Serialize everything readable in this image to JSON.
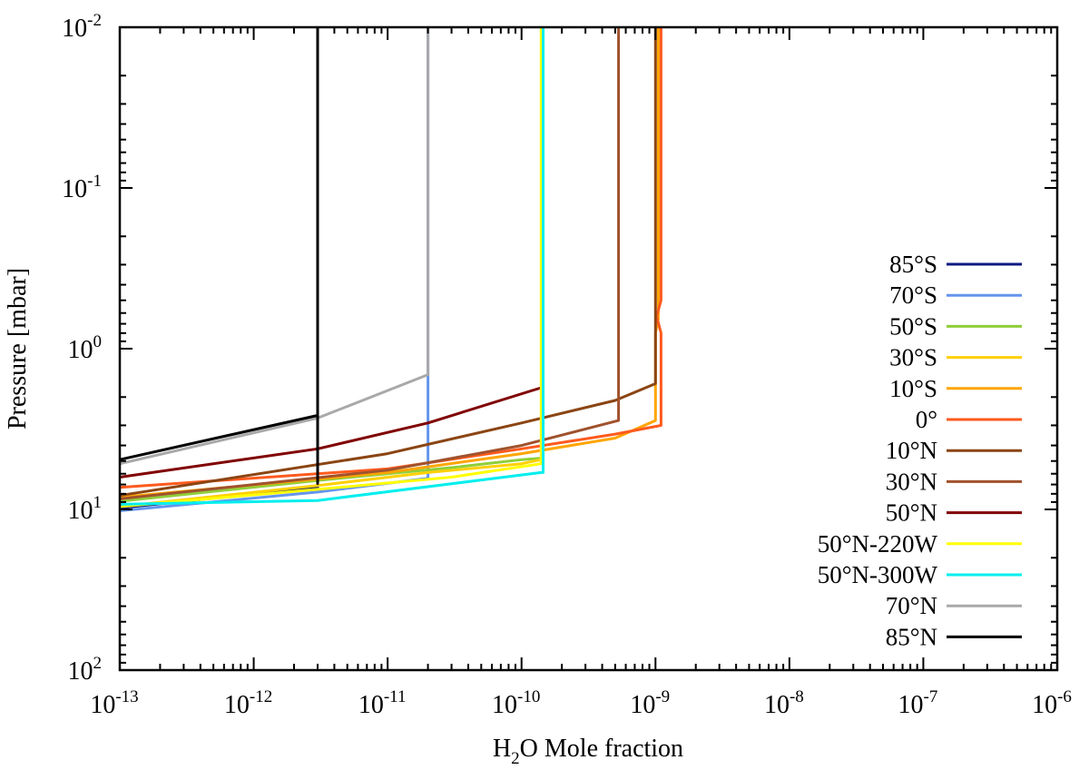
{
  "chart_data": {
    "type": "line",
    "title": "",
    "xlabel": {
      "prefix": "H",
      "subscript": "2",
      "suffix": "O Mole fraction"
    },
    "ylabel": "Pressure [mbar]",
    "xscale": "log",
    "yscale": "log",
    "xlim": [
      1e-13,
      1e-06
    ],
    "ylim": [
      100,
      0.01
    ],
    "y_inverted": true,
    "grid": false,
    "legend_position": "right",
    "x_ticks": [
      {
        "value": 1e-13,
        "base": "10",
        "exp": "-13"
      },
      {
        "value": 1e-12,
        "base": "10",
        "exp": "-12"
      },
      {
        "value": 1e-11,
        "base": "10",
        "exp": "-11"
      },
      {
        "value": 1e-10,
        "base": "10",
        "exp": "-10"
      },
      {
        "value": 1e-09,
        "base": "10",
        "exp": "-9"
      },
      {
        "value": 1e-08,
        "base": "10",
        "exp": "-8"
      },
      {
        "value": 1e-07,
        "base": "10",
        "exp": "-7"
      },
      {
        "value": 1e-06,
        "base": "10",
        "exp": "-6"
      }
    ],
    "y_ticks": [
      {
        "value": 0.01,
        "base": "10",
        "exp": "-2"
      },
      {
        "value": 0.1,
        "base": "10",
        "exp": "-1"
      },
      {
        "value": 1,
        "base": "10",
        "exp": "0"
      },
      {
        "value": 10,
        "base": "10",
        "exp": "1"
      },
      {
        "value": 100,
        "base": "10",
        "exp": "2"
      }
    ],
    "series": [
      {
        "name": "85°S",
        "color": "#0d1a80",
        "x": [
          1e-13,
          3e-12,
          3e-12,
          3e-12
        ],
        "y": [
          9.8,
          7.3,
          3.0,
          0.01
        ]
      },
      {
        "name": "70°S",
        "color": "#6495ed",
        "x": [
          1e-13,
          3e-12,
          2e-11,
          2e-11
        ],
        "y": [
          10.2,
          7.8,
          6.4,
          0.01
        ]
      },
      {
        "name": "50°S",
        "color": "#8fce3a",
        "x": [
          1e-13,
          3e-12,
          3e-11,
          1e-10,
          1.4e-10
        ],
        "y": [
          8.9,
          6.6,
          5.5,
          4.9,
          4.8
        ]
      },
      {
        "name": "30°S",
        "color": "#ffd000",
        "x": [
          1e-13,
          3e-12,
          2e-11,
          1e-10,
          1.4e-10
        ],
        "y": [
          9.6,
          7.1,
          5.9,
          5.2,
          4.9
        ]
      },
      {
        "name": "10°S",
        "color": "#ffa500",
        "x": [
          1e-13,
          1e-11,
          1e-10,
          5e-10,
          1e-09,
          1e-09,
          1.05e-09,
          1.05e-09
        ],
        "y": [
          8.4,
          5.9,
          4.5,
          3.6,
          2.8,
          0.8,
          0.65,
          0.01
        ]
      },
      {
        "name": "0°",
        "color": "#ff5a1e",
        "x": [
          1e-13,
          1e-11,
          1e-10,
          5e-10,
          1.1e-09,
          1.1e-09,
          1.02e-09,
          1.1e-09,
          1.1e-09
        ],
        "y": [
          7.3,
          5.6,
          4.2,
          3.4,
          3.0,
          0.8,
          0.63,
          0.5,
          0.01
        ]
      },
      {
        "name": "10°N",
        "color": "#8b4513",
        "x": [
          1e-13,
          1e-11,
          1e-10,
          5e-10,
          1e-09,
          1e-09
        ],
        "y": [
          8.2,
          4.5,
          2.9,
          2.1,
          1.65,
          0.01
        ]
      },
      {
        "name": "30°N",
        "color": "#a0522d",
        "x": [
          1e-13,
          1e-11,
          1e-10,
          5.3e-10,
          5.3e-10
        ],
        "y": [
          8.6,
          5.7,
          4.0,
          2.8,
          0.01
        ]
      },
      {
        "name": "50°N",
        "color": "#800000",
        "x": [
          1e-13,
          3e-12,
          2e-11,
          1.4e-10
        ],
        "y": [
          6.3,
          4.2,
          2.9,
          1.75
        ]
      },
      {
        "name": "50°N-220W",
        "color": "#ffff00",
        "x": [
          1e-13,
          3e-12,
          3e-11,
          1.4e-10,
          1.4e-10
        ],
        "y": [
          9.6,
          7.5,
          6.3,
          5.2,
          0.01
        ]
      },
      {
        "name": "50°N-300W",
        "color": "#00eeee",
        "x": [
          1e-13,
          3e-12,
          1.4e-10,
          1.45e-10,
          1.45e-10
        ],
        "y": [
          9.3,
          8.8,
          5.9,
          5.9,
          0.01
        ]
      },
      {
        "name": "70°N",
        "color": "#a9a9a9",
        "x": [
          1e-13,
          3e-12,
          2e-11,
          2e-11
        ],
        "y": [
          5.2,
          2.7,
          1.45,
          0.01
        ]
      },
      {
        "name": "85°N",
        "color": "#000000",
        "x": [
          1e-13,
          3e-12,
          3e-12,
          3e-12
        ],
        "y": [
          4.9,
          2.6,
          6.9,
          0.01
        ]
      }
    ]
  }
}
